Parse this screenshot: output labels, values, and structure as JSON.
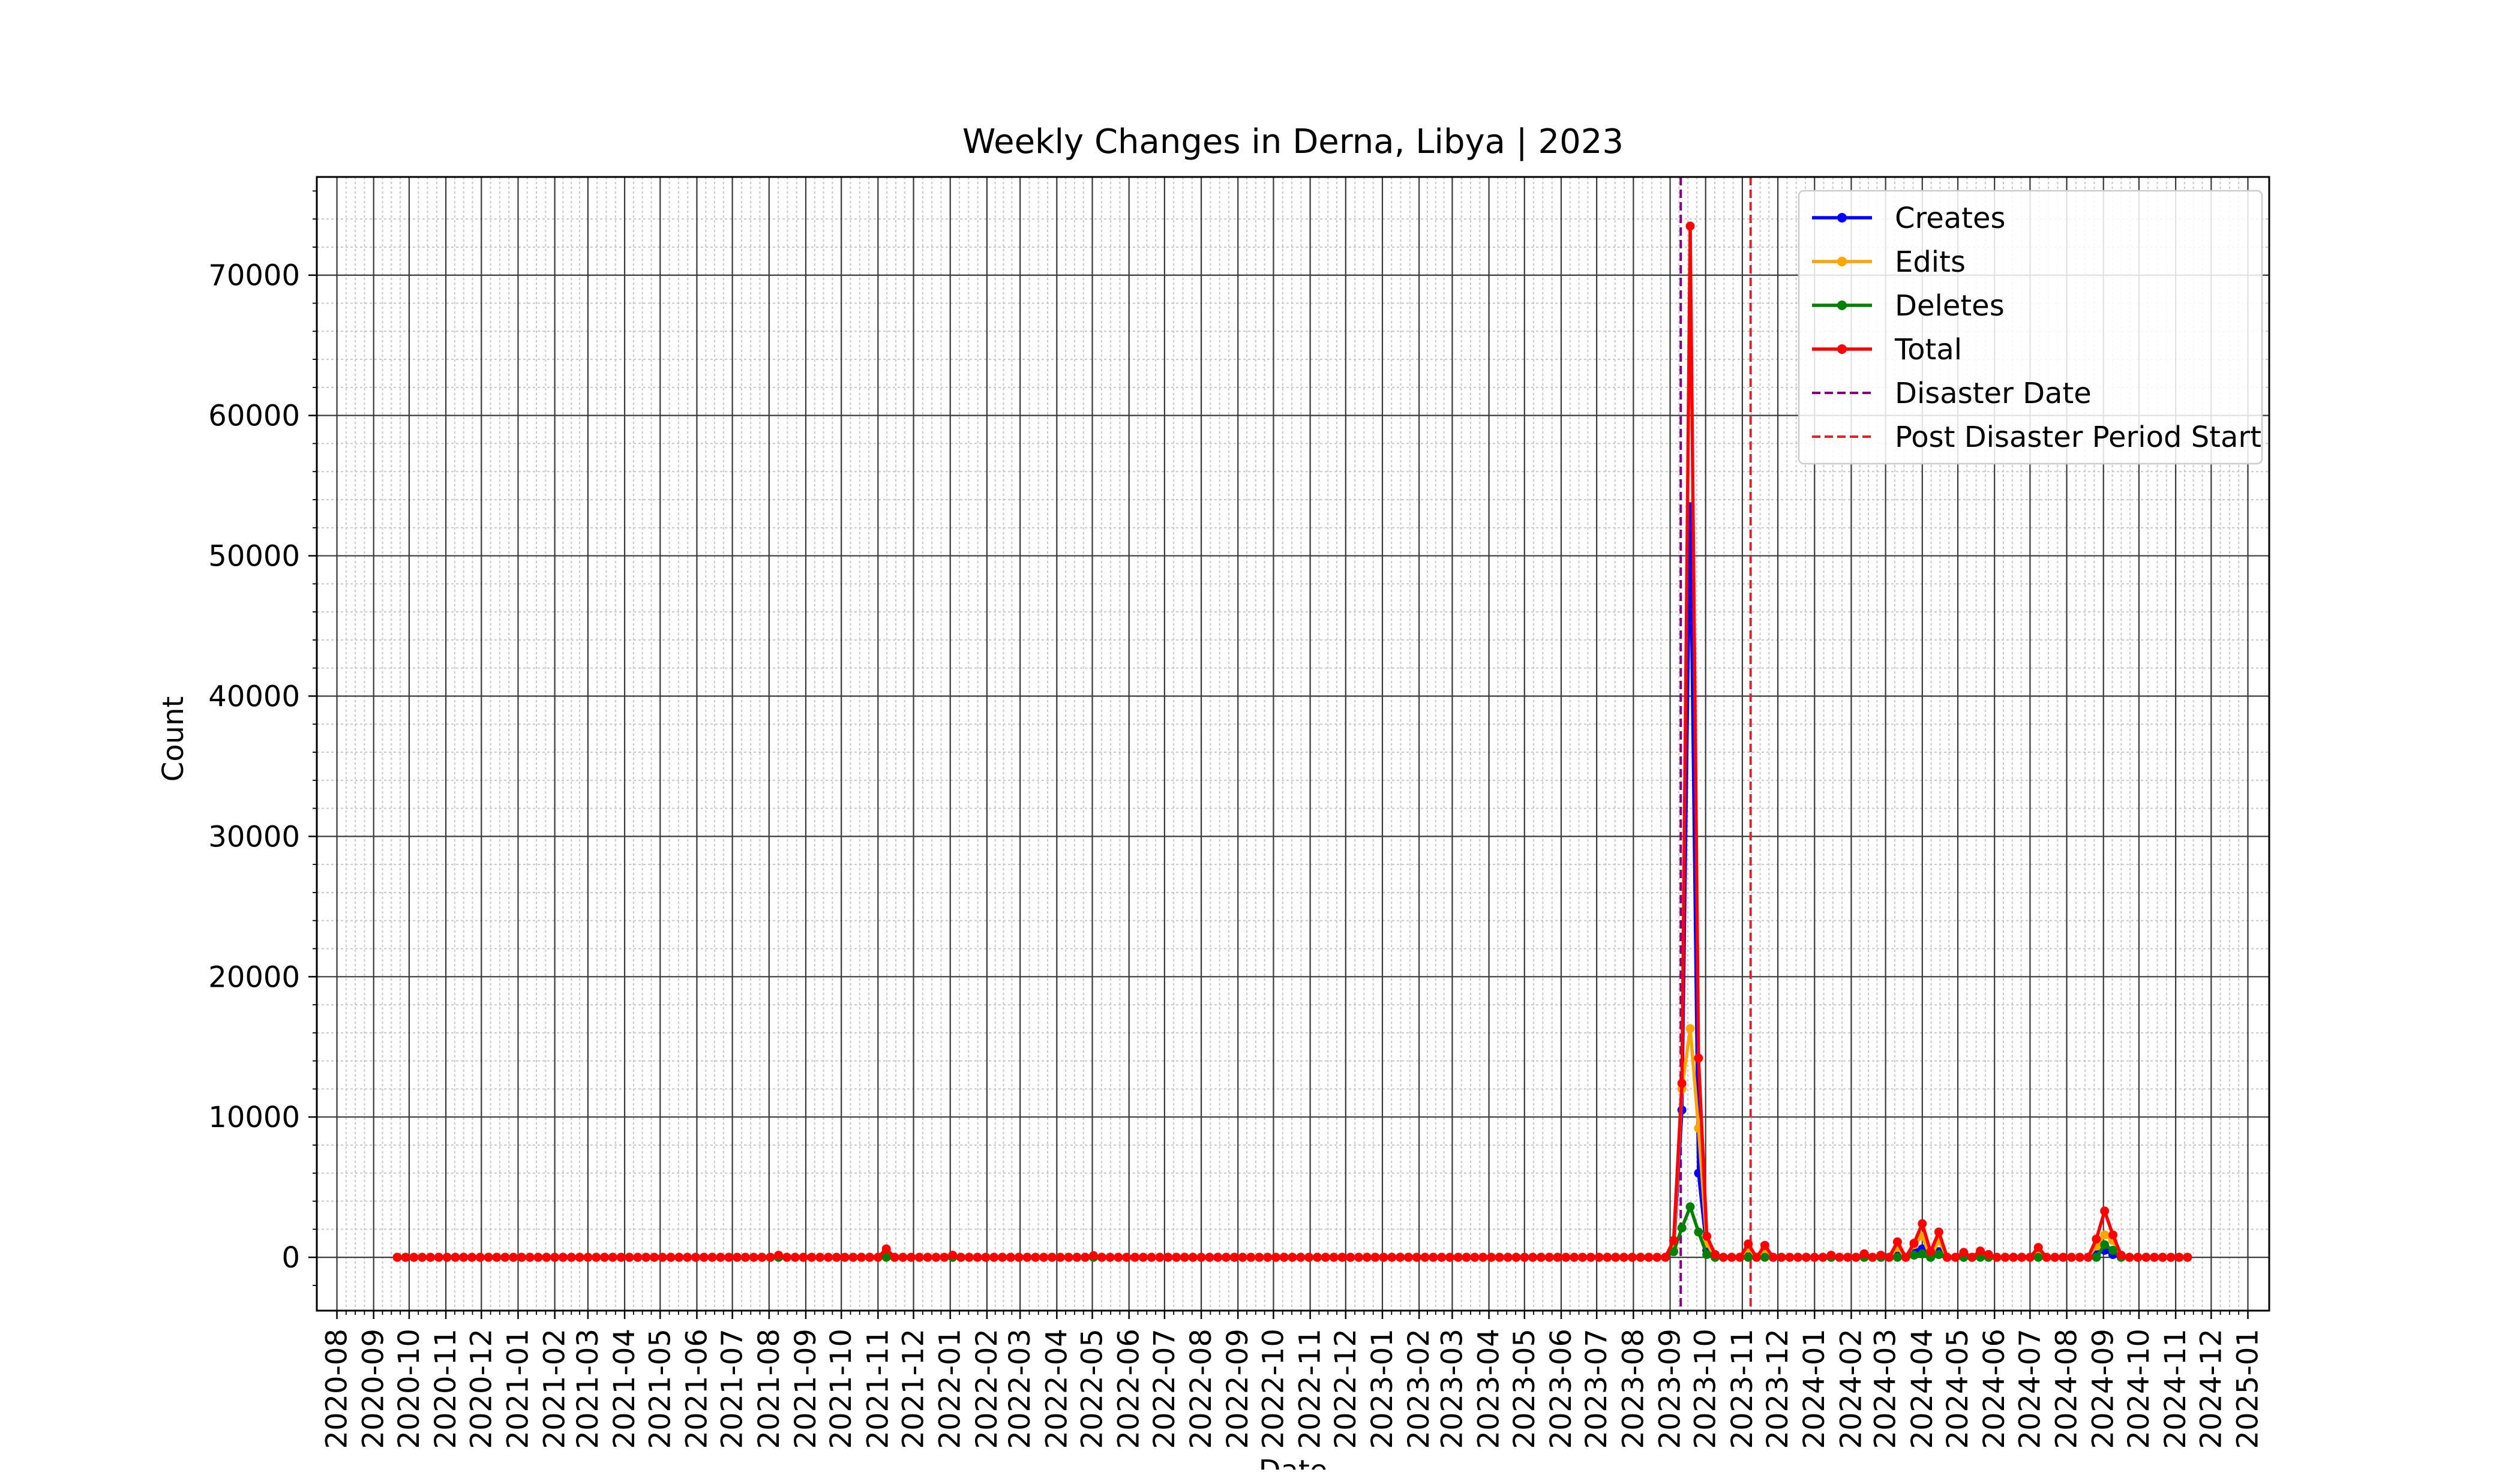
{
  "chart_data": {
    "type": "line",
    "title": "Weekly Changes in Derna, Libya | 2023",
    "xlabel": "Date",
    "ylabel": "Count",
    "x_axis_type": "date",
    "xlim": [
      "2020-07-15",
      "2025-01-19"
    ],
    "ylim": [
      -3800,
      77000
    ],
    "xtick_labels": [
      "2020-08",
      "2020-09",
      "2020-10",
      "2020-11",
      "2020-12",
      "2021-01",
      "2021-02",
      "2021-03",
      "2021-04",
      "2021-05",
      "2021-06",
      "2021-07",
      "2021-08",
      "2021-09",
      "2021-10",
      "2021-11",
      "2021-12",
      "2022-01",
      "2022-02",
      "2022-03",
      "2022-04",
      "2022-05",
      "2022-06",
      "2022-07",
      "2022-08",
      "2022-09",
      "2022-10",
      "2022-11",
      "2022-12",
      "2023-01",
      "2023-02",
      "2023-03",
      "2023-04",
      "2023-05",
      "2023-06",
      "2023-07",
      "2023-08",
      "2023-09",
      "2023-10",
      "2023-11",
      "2023-12",
      "2024-01",
      "2024-02",
      "2024-03",
      "2024-04",
      "2024-05",
      "2024-06",
      "2024-07",
      "2024-08",
      "2024-09",
      "2024-10",
      "2024-11",
      "2024-12",
      "2025-01"
    ],
    "ytick_labels": [
      "0",
      "10000",
      "20000",
      "30000",
      "40000",
      "50000",
      "60000",
      "70000"
    ],
    "grid": "major and minor",
    "legend_position": "top-right",
    "baseline_date_range": [
      "2020-09-21",
      "2024-11-11"
    ],
    "series": [
      {
        "name": "Creates",
        "color": "#0000ff",
        "points": [
          [
            "2021-11-08",
            150
          ],
          [
            "2023-09-04",
            450
          ],
          [
            "2023-09-11",
            10500
          ],
          [
            "2023-09-18",
            53500
          ],
          [
            "2023-09-25",
            6000
          ],
          [
            "2023-10-02",
            500
          ],
          [
            "2023-11-06",
            300
          ],
          [
            "2023-11-20",
            250
          ],
          [
            "2024-03-11",
            350
          ],
          [
            "2024-03-25",
            450
          ],
          [
            "2024-04-01",
            600
          ],
          [
            "2024-04-15",
            400
          ],
          [
            "2024-05-20",
            150
          ],
          [
            "2024-07-08",
            250
          ],
          [
            "2024-08-26",
            250
          ],
          [
            "2024-09-02",
            500
          ],
          [
            "2024-09-09",
            200
          ]
        ]
      },
      {
        "name": "Edits",
        "color": "#ffa500",
        "points": [
          [
            "2021-11-08",
            450
          ],
          [
            "2022-01-03",
            100
          ],
          [
            "2023-09-04",
            600
          ],
          [
            "2023-09-11",
            12000
          ],
          [
            "2023-09-18",
            16300
          ],
          [
            "2023-09-25",
            9200
          ],
          [
            "2023-10-02",
            1000
          ],
          [
            "2023-11-06",
            650
          ],
          [
            "2023-11-20",
            550
          ],
          [
            "2024-02-12",
            150
          ],
          [
            "2024-03-11",
            700
          ],
          [
            "2024-03-25",
            900
          ],
          [
            "2024-04-01",
            1500
          ],
          [
            "2024-04-15",
            1200
          ],
          [
            "2024-05-06",
            200
          ],
          [
            "2024-05-20",
            300
          ],
          [
            "2024-07-08",
            450
          ],
          [
            "2024-08-26",
            800
          ],
          [
            "2024-09-02",
            1600
          ],
          [
            "2024-09-09",
            1200
          ]
        ]
      },
      {
        "name": "Deletes",
        "color": "#008000",
        "points": [
          [
            "2023-09-04",
            400
          ],
          [
            "2023-09-11",
            2100
          ],
          [
            "2023-09-18",
            3600
          ],
          [
            "2023-09-25",
            1800
          ],
          [
            "2023-10-02",
            200
          ],
          [
            "2024-03-25",
            150
          ],
          [
            "2024-04-01",
            250
          ],
          [
            "2024-04-15",
            200
          ],
          [
            "2024-09-02",
            900
          ],
          [
            "2024-09-09",
            500
          ]
        ]
      },
      {
        "name": "Total",
        "color": "#ff0000",
        "points": [
          [
            "2021-08-09",
            150
          ],
          [
            "2021-11-08",
            600
          ],
          [
            "2022-01-03",
            150
          ],
          [
            "2022-05-02",
            120
          ],
          [
            "2023-09-04",
            1200
          ],
          [
            "2023-09-11",
            12400
          ],
          [
            "2023-09-18",
            73500
          ],
          [
            "2023-09-25",
            14200
          ],
          [
            "2023-10-02",
            1500
          ],
          [
            "2023-10-09",
            200
          ],
          [
            "2023-11-06",
            950
          ],
          [
            "2023-11-20",
            850
          ],
          [
            "2024-01-15",
            150
          ],
          [
            "2024-02-12",
            250
          ],
          [
            "2024-02-26",
            150
          ],
          [
            "2024-03-11",
            1100
          ],
          [
            "2024-03-25",
            1000
          ],
          [
            "2024-04-01",
            2400
          ],
          [
            "2024-04-08",
            400
          ],
          [
            "2024-04-15",
            1800
          ],
          [
            "2024-05-06",
            350
          ],
          [
            "2024-05-20",
            450
          ],
          [
            "2024-05-27",
            200
          ],
          [
            "2024-07-08",
            700
          ],
          [
            "2024-08-26",
            1300
          ],
          [
            "2024-09-02",
            3300
          ],
          [
            "2024-09-09",
            1600
          ],
          [
            "2024-09-16",
            150
          ]
        ]
      }
    ],
    "vlines": [
      {
        "name": "Disaster Date",
        "date": "2023-09-10",
        "color": "#800080",
        "style": "dashed"
      },
      {
        "name": "Post Disaster Period Start",
        "date": "2023-11-08",
        "color": "#d62728",
        "style": "dashed"
      }
    ]
  }
}
